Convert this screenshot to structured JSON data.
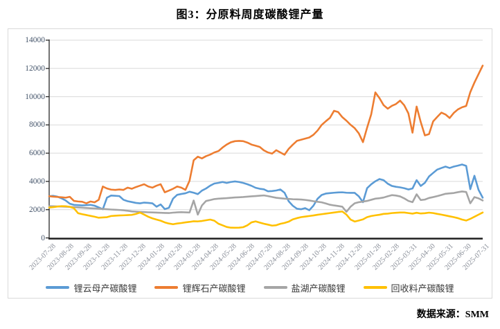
{
  "title": "图3：分原料周度碳酸锂产量",
  "source": "数据来源：SMM",
  "chart_data": {
    "type": "line",
    "title": "图3：分原料周度碳酸锂产量",
    "xlabel": "",
    "ylabel": "",
    "ylim": [
      0,
      14000
    ],
    "y_ticks": [
      0,
      2000,
      4000,
      6000,
      8000,
      10000,
      12000,
      14000
    ],
    "grid": "horizontal",
    "grid_color": "#d9d9d9",
    "axis_color": "#262626",
    "legend_position": "bottom",
    "x_tick_labels": [
      "2023-07-28",
      "2023-08-28",
      "2023-09-28",
      "2023-10-28",
      "2023-11-28",
      "2023-12-28",
      "2024-01-28",
      "2024-02-28",
      "2024-03-28",
      "2024-04-28",
      "2024-05-28",
      "2024-06-28",
      "2024-07-28",
      "2024-08-28",
      "2024-09-28",
      "2024-10-28",
      "2024-11-28",
      "2024-12-28",
      "2025-01-28",
      "2025-02-28",
      "2025-03-31",
      "2025-04-30",
      "2025-05-31",
      "2025-06-30",
      "2025-07-31"
    ],
    "x_frequency": "weekly",
    "series": [
      {
        "name": "锂云母产碳酸锂",
        "color": "#5B9BD5",
        "values": [
          2950,
          2980,
          2920,
          2800,
          2650,
          2420,
          2340,
          2320,
          2300,
          2320,
          2340,
          2280,
          2160,
          2030,
          2850,
          3000,
          2980,
          2960,
          2700,
          2600,
          2540,
          2480,
          2450,
          2500,
          2480,
          2450,
          2210,
          2370,
          2040,
          2130,
          2780,
          3050,
          3110,
          3160,
          3270,
          3200,
          3100,
          3350,
          3500,
          3700,
          3850,
          3900,
          3960,
          3890,
          3960,
          4000,
          3960,
          3890,
          3800,
          3690,
          3550,
          3480,
          3440,
          3300,
          3320,
          3360,
          3430,
          3200,
          2600,
          2280,
          2070,
          2030,
          2110,
          1960,
          2280,
          2770,
          3040,
          3140,
          3170,
          3200,
          3220,
          3230,
          3200,
          3190,
          3190,
          2940,
          2530,
          3520,
          3800,
          4010,
          4170,
          4090,
          3840,
          3680,
          3620,
          3580,
          3520,
          3430,
          3500,
          4090,
          3680,
          3900,
          4350,
          4600,
          4840,
          4950,
          5050,
          4950,
          5050,
          5120,
          5200,
          5100,
          3450,
          4400,
          3400,
          2850
        ]
      },
      {
        "name": "锂辉石产碳酸锂",
        "color": "#ED7D31",
        "values": [
          2950,
          2920,
          2900,
          2880,
          2850,
          2910,
          2620,
          2580,
          2560,
          2450,
          2580,
          2520,
          2700,
          3640,
          3500,
          3420,
          3400,
          3430,
          3400,
          3560,
          3480,
          3600,
          3700,
          3800,
          3640,
          3560,
          3700,
          3800,
          3230,
          3350,
          3480,
          3640,
          3560,
          3400,
          4050,
          5500,
          5750,
          5630,
          5790,
          5900,
          6050,
          6150,
          6400,
          6610,
          6770,
          6850,
          6870,
          6850,
          6750,
          6610,
          6530,
          6440,
          6200,
          6050,
          5970,
          6210,
          6050,
          5890,
          6300,
          6600,
          6870,
          6950,
          7030,
          7110,
          7300,
          7600,
          8000,
          8260,
          8500,
          9000,
          8910,
          8550,
          8300,
          8010,
          7770,
          7400,
          6780,
          7800,
          8750,
          10300,
          9900,
          9400,
          9150,
          9350,
          9480,
          9720,
          9390,
          8820,
          7450,
          9300,
          8200,
          7260,
          7350,
          8250,
          8570,
          8870,
          8740,
          8490,
          8850,
          9100,
          9250,
          9340,
          10320,
          11000,
          11600,
          12200
        ]
      },
      {
        "name": "盐湖产碳酸锂",
        "color": "#A5A5A5",
        "values": [
          2250,
          2240,
          2230,
          2220,
          2210,
          2200,
          2180,
          2160,
          2140,
          2120,
          2100,
          2085,
          2070,
          2050,
          2030,
          2010,
          1995,
          1980,
          1960,
          1920,
          1880,
          1860,
          1845,
          1830,
          1815,
          1805,
          1795,
          1780,
          1770,
          1760,
          1790,
          1810,
          1825,
          1810,
          1800,
          2650,
          1650,
          2300,
          2615,
          2680,
          2750,
          2780,
          2800,
          2815,
          2840,
          2865,
          2880,
          2895,
          2920,
          2945,
          2965,
          2990,
          3010,
          2960,
          2900,
          2840,
          2810,
          2780,
          2760,
          2740,
          2730,
          2720,
          2690,
          2650,
          2600,
          2560,
          2520,
          2440,
          2350,
          2300,
          2260,
          2210,
          1850,
          2210,
          2450,
          2530,
          2570,
          2620,
          2700,
          2780,
          2810,
          2860,
          2950,
          3030,
          3000,
          2940,
          2800,
          2620,
          2530,
          3090,
          2680,
          2715,
          2830,
          2890,
          2960,
          3040,
          3125,
          3155,
          3180,
          3240,
          3290,
          3250,
          2450,
          2890,
          2800,
          2650
        ]
      },
      {
        "name": "回收料产碳酸锂",
        "color": "#FFC000",
        "values": [
          2150,
          2180,
          2220,
          2250,
          2240,
          2200,
          2100,
          1750,
          1680,
          1620,
          1560,
          1500,
          1430,
          1450,
          1470,
          1550,
          1570,
          1590,
          1600,
          1615,
          1630,
          1700,
          1795,
          1650,
          1500,
          1385,
          1300,
          1220,
          1100,
          1020,
          970,
          1020,
          1055,
          1100,
          1135,
          1180,
          1170,
          1200,
          1250,
          1300,
          1220,
          1005,
          890,
          775,
          725,
          720,
          725,
          760,
          890,
          1100,
          1170,
          1085,
          1005,
          940,
          870,
          900,
          1000,
          1060,
          1150,
          1310,
          1400,
          1470,
          1510,
          1550,
          1590,
          1640,
          1680,
          1720,
          1760,
          1800,
          1840,
          1870,
          1650,
          1300,
          1160,
          1230,
          1310,
          1470,
          1550,
          1600,
          1640,
          1700,
          1720,
          1760,
          1780,
          1800,
          1800,
          1760,
          1720,
          1780,
          1730,
          1750,
          1790,
          1760,
          1700,
          1650,
          1590,
          1530,
          1470,
          1400,
          1300,
          1230,
          1350,
          1500,
          1650,
          1800
        ]
      }
    ]
  }
}
